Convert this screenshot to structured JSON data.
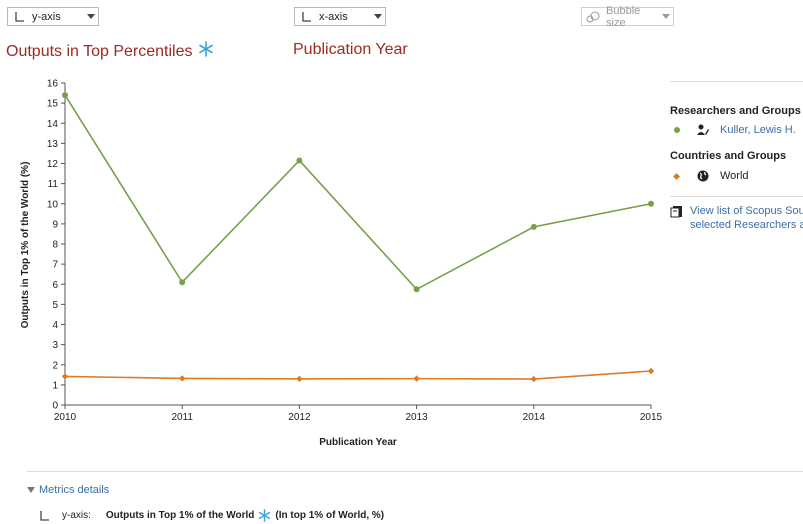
{
  "controls": {
    "y_axis_label": "y-axis",
    "x_axis_label": "x-axis",
    "bubble_label": "Bubble size"
  },
  "headings": {
    "y_metric": "Outputs in Top Percentiles",
    "x_metric": "Publication Year"
  },
  "legend": {
    "group1_title": "Researchers and Groups",
    "group1_item": "Kuller, Lewis H.",
    "group2_title": "Countries and Groups",
    "group2_item": "World",
    "scopus_link_line1": "View list of Scopus Sourc",
    "scopus_link_line2": "selected Researchers an"
  },
  "footer": {
    "metrics_details": "Metrics details",
    "yaxis_label": "y-axis:",
    "yaxis_metric": "Outputs in Top 1% of the World",
    "yaxis_suffix": "(In top 1% of World, %)"
  },
  "colors": {
    "heading": "#9b2b1f",
    "series_researcher": "#77a04b",
    "series_world": "#e07a24",
    "link": "#3b6ea6",
    "snowflake": "#3aa6d6"
  },
  "icons": [
    "y-axis-icon",
    "x-axis-icon",
    "bubble-icon",
    "chevron-down-icon",
    "snowflake-icon",
    "researcher-icon",
    "globe-icon",
    "book-icon",
    "triangle-down-icon"
  ],
  "chart_data": {
    "type": "line",
    "x": [
      2010,
      2011,
      2012,
      2013,
      2014,
      2015
    ],
    "xlabel": "Publication Year",
    "ylabel": "Outputs in Top 1% of the World (%)",
    "ylim": [
      0,
      16
    ],
    "yticks": [
      0,
      1,
      2,
      3,
      4,
      5,
      6,
      7,
      8,
      9,
      10,
      11,
      12,
      13,
      14,
      15,
      16
    ],
    "grid": false,
    "series": [
      {
        "name": "Kuller, Lewis H.",
        "marker": "circle",
        "values": [
          15.4,
          6.1,
          12.15,
          5.75,
          8.85,
          10.0
        ]
      },
      {
        "name": "World",
        "marker": "diamond",
        "values": [
          1.42,
          1.32,
          1.3,
          1.31,
          1.29,
          1.69
        ]
      }
    ]
  }
}
